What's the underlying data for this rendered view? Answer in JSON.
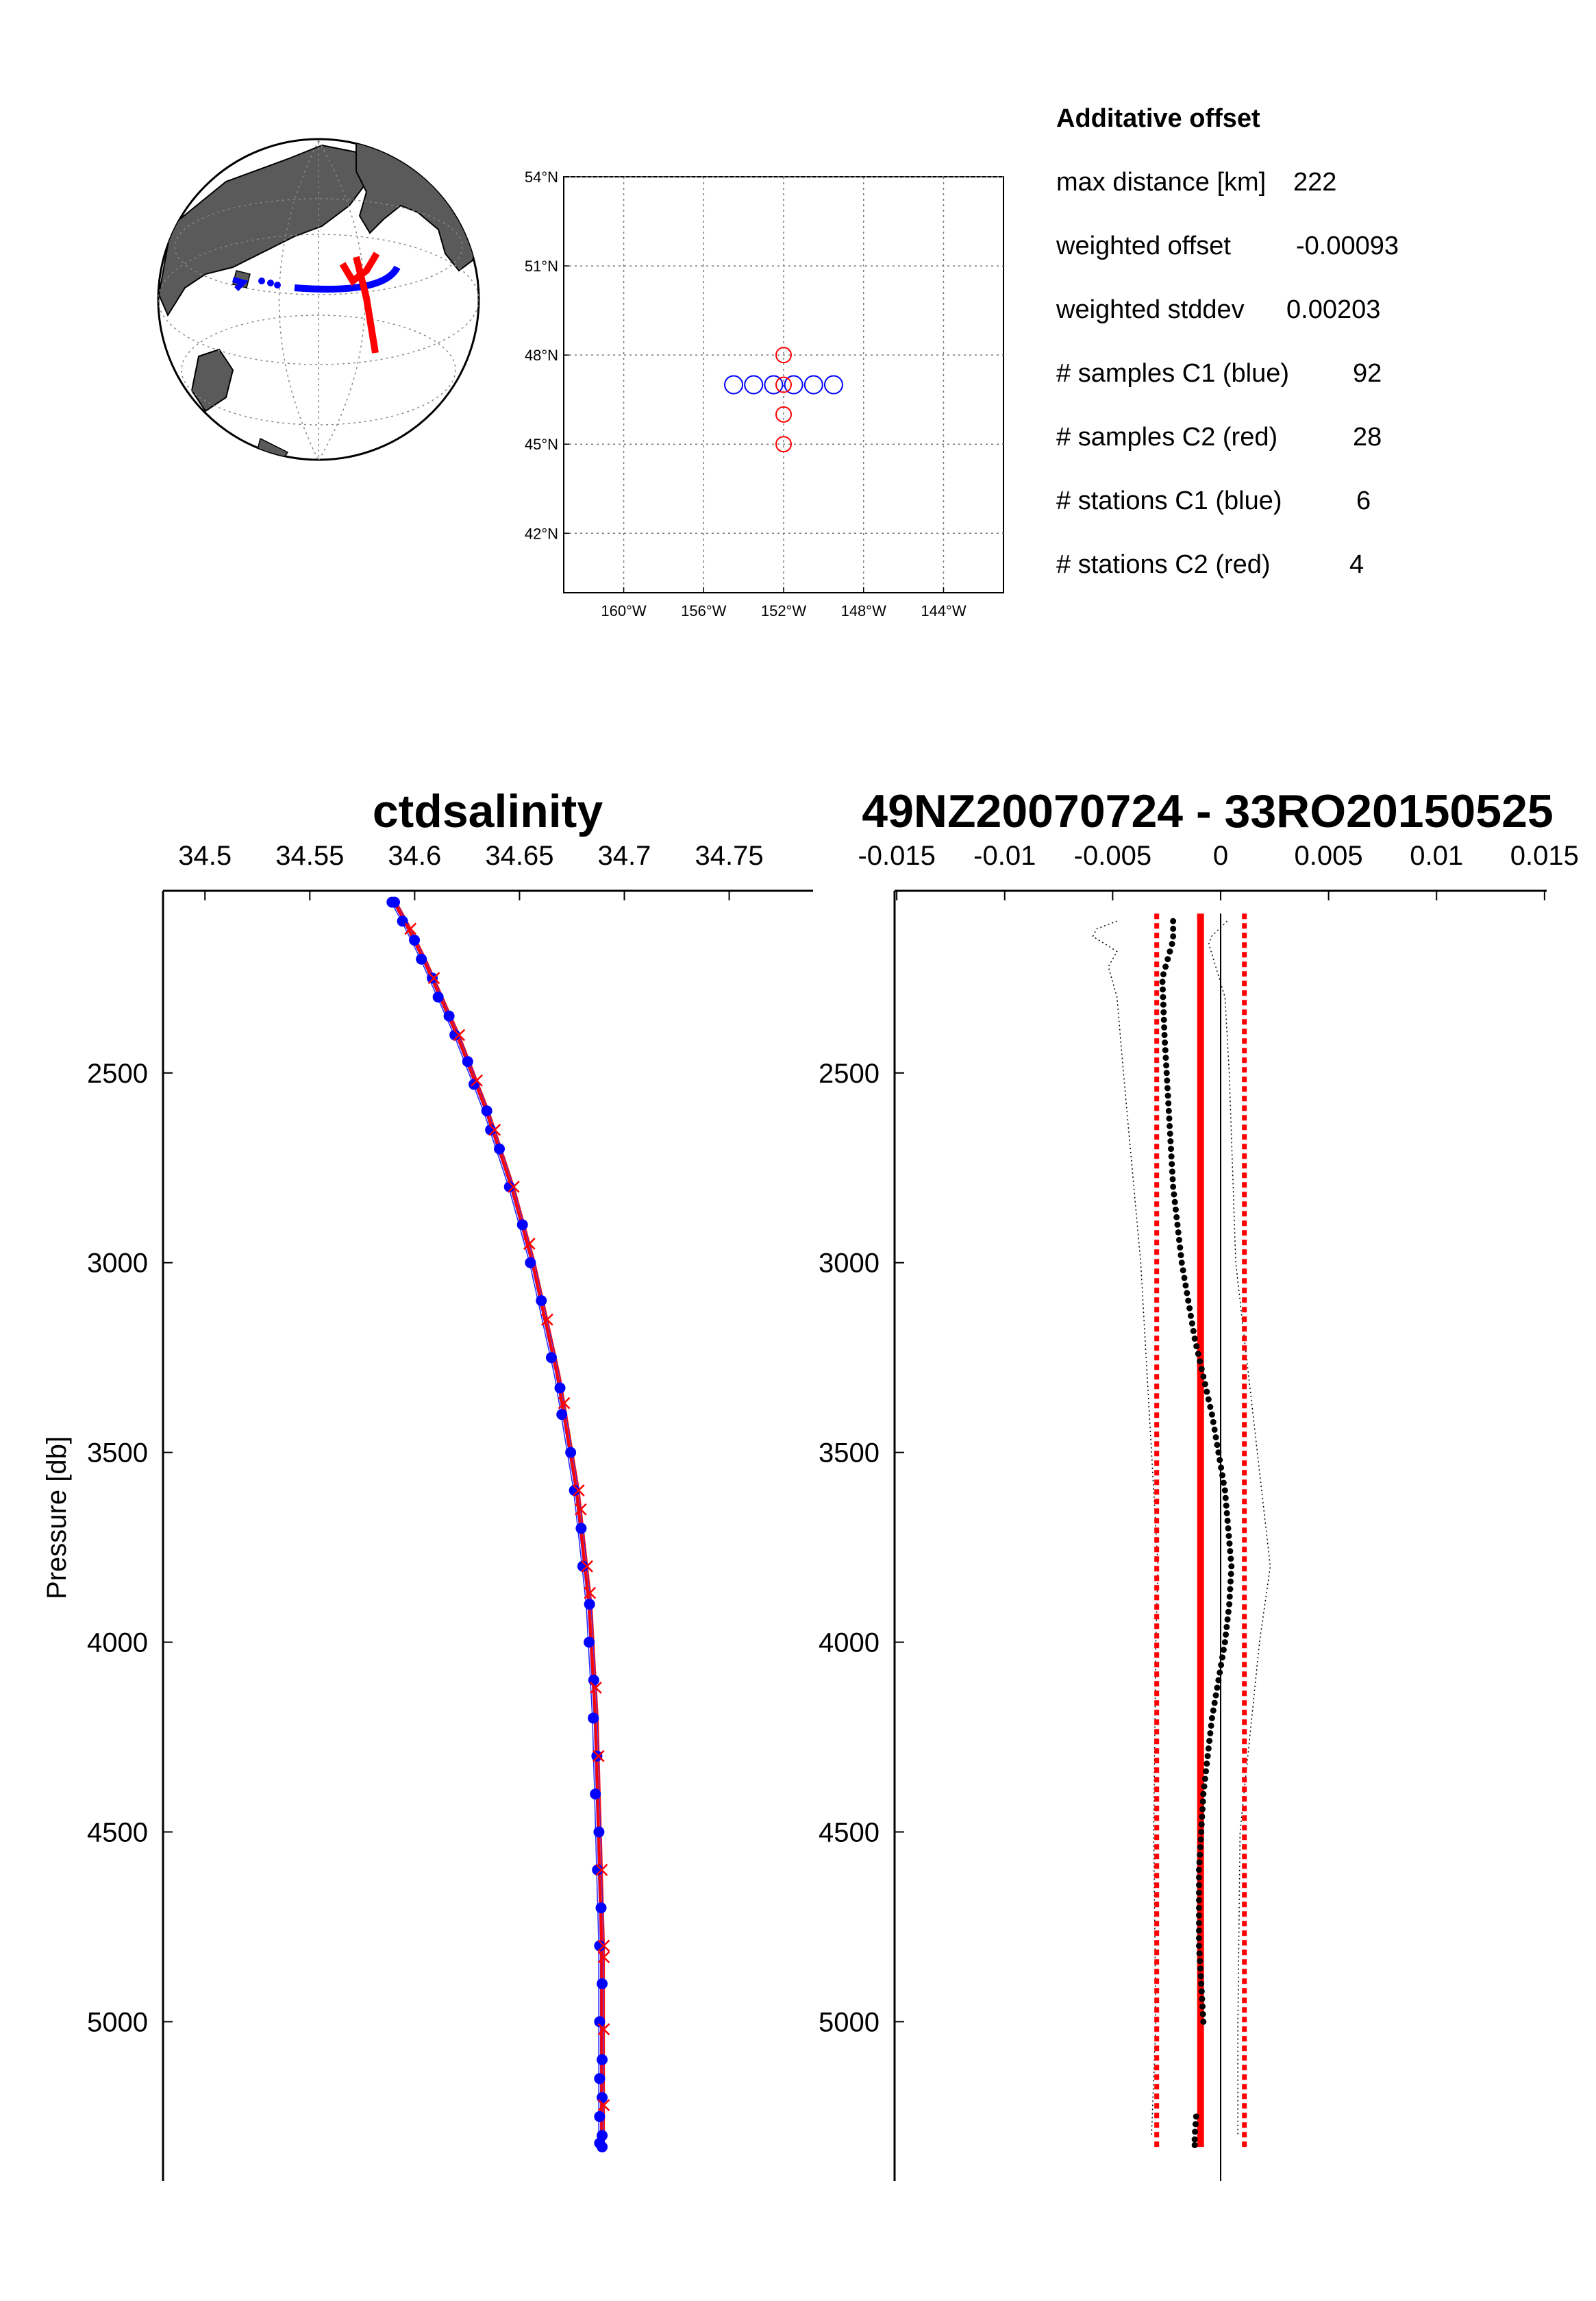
{
  "info": {
    "title": "Additative offset",
    "lines": [
      {
        "label": "max distance [km]",
        "value": "222"
      },
      {
        "label": "weighted offset",
        "value": "-0.00093"
      },
      {
        "label": "weighted stddev",
        "value": "0.00203"
      },
      {
        "label": "# samples C1 (blue)",
        "value": "92"
      },
      {
        "label": "# samples C2 (red)",
        "value": "28"
      },
      {
        "label": "# stations C1 (blue)",
        "value": "6"
      },
      {
        "label": "# stations C2 (red)",
        "value": "4"
      }
    ]
  },
  "colors": {
    "c1": "#0000ff",
    "c2": "#ff0000",
    "globe_land": "#5a5a5a",
    "diff": "#000000"
  },
  "chart_data": [
    {
      "type": "scatter",
      "name": "station-map",
      "xticks": [
        "160°W",
        "156°W",
        "152°W",
        "148°W",
        "144°W"
      ],
      "xtick_values": [
        -160,
        -156,
        -152,
        -148,
        -144
      ],
      "yticks": [
        "54°N",
        "51°N",
        "48°N",
        "45°N",
        "42°N"
      ],
      "ytick_values": [
        54,
        51,
        48,
        45,
        42
      ],
      "xlim": [
        -163,
        -141
      ],
      "ylim": [
        40,
        54
      ],
      "grid": true,
      "series": [
        {
          "key": "c1",
          "x": [
            -154.5,
            -153.5,
            -152.5,
            -151.5,
            -150.5,
            -149.5
          ],
          "y": [
            47,
            47,
            47,
            47,
            47,
            47
          ]
        },
        {
          "key": "c2",
          "x": [
            -152,
            -152,
            -152,
            -152
          ],
          "y": [
            48,
            47,
            46,
            45
          ]
        }
      ]
    },
    {
      "type": "line",
      "name": "salinity-profile",
      "title": "ctdsalinity",
      "ylabel": "Pressure  [db]",
      "xticks": [
        "34.5",
        "34.55",
        "34.6",
        "34.65",
        "34.7",
        "34.75"
      ],
      "xtick_values": [
        34.5,
        34.55,
        34.6,
        34.65,
        34.7,
        34.75
      ],
      "yticks": [
        "2500",
        "3000",
        "3500",
        "4000",
        "4500",
        "5000"
      ],
      "ytick_values": [
        2500,
        3000,
        3500,
        4000,
        4500,
        5000
      ],
      "xlim": [
        34.48,
        34.79
      ],
      "ylim": [
        2020,
        5420
      ],
      "y_reversed": true,
      "profile": {
        "p": [
          2050,
          2100,
          2200,
          2300,
          2400,
          2500,
          2600,
          2700,
          2800,
          2900,
          3000,
          3100,
          3200,
          3300,
          3400,
          3500,
          3600,
          3700,
          3800,
          3900,
          4000,
          4200,
          4400,
          4600,
          4800,
          5000,
          5200,
          5330
        ],
        "s": [
          34.59,
          34.595,
          34.604,
          34.612,
          34.62,
          34.627,
          34.634,
          34.64,
          34.646,
          34.651,
          34.656,
          34.66,
          34.664,
          34.668,
          34.671,
          34.674,
          34.677,
          34.679,
          34.681,
          34.683,
          34.684,
          34.686,
          34.687,
          34.688,
          34.689,
          34.689,
          34.689,
          34.689
        ]
      },
      "c1_pressures": [
        2050,
        2050,
        2100,
        2150,
        2200,
        2250,
        2300,
        2350,
        2400,
        2470,
        2530,
        2600,
        2650,
        2700,
        2800,
        2900,
        3000,
        3100,
        3250,
        3330,
        3400,
        3500,
        3600,
        3700,
        3800,
        3900,
        4000,
        4100,
        4200,
        4300,
        4400,
        4500,
        4600,
        4700,
        4800,
        4900,
        5000,
        5100,
        5150,
        5200,
        5250,
        5300,
        5320,
        5330
      ],
      "c2_pressures": [
        2120,
        2250,
        2400,
        2520,
        2650,
        2800,
        2950,
        3150,
        3370,
        3600,
        3650,
        3800,
        3870,
        4120,
        4300,
        4600,
        4800,
        4830,
        5020,
        5220
      ]
    },
    {
      "type": "scatter",
      "name": "salinity-difference",
      "title": "49NZ20070724 - 33RO20150525",
      "xticks": [
        "-0.015",
        "-0.01",
        "-0.005",
        "0",
        "0.005",
        "0.01",
        "0.015"
      ],
      "xtick_values": [
        -0.015,
        -0.01,
        -0.005,
        0,
        0.005,
        0.01,
        0.015
      ],
      "yticks": [
        "2500",
        "3000",
        "3500",
        "4000",
        "4500",
        "5000"
      ],
      "ytick_values": [
        2500,
        3000,
        3500,
        4000,
        4500,
        5000
      ],
      "xlim": [
        -0.0151,
        0.0151
      ],
      "ylim": [
        2020,
        5420
      ],
      "y_reversed": true,
      "weighted_offset": -0.00093,
      "stddev_band": [
        -0.00296,
        0.0011
      ],
      "diff": {
        "p": [
          2100,
          2150,
          2250,
          2400,
          2600,
          2800,
          3000,
          3200,
          3400,
          3600,
          3800,
          3900,
          4000,
          4200,
          4400,
          4600,
          4800,
          5000,
          5300
        ],
        "d": [
          -0.0022,
          -0.0022,
          -0.0027,
          -0.0026,
          -0.0024,
          -0.0022,
          -0.0018,
          -0.0012,
          -0.0004,
          0.0002,
          0.0005,
          0.0004,
          0.0002,
          -0.0004,
          -0.0008,
          -0.001,
          -0.001,
          -0.0008,
          -0.0012
        ]
      },
      "envelope_left": {
        "p": [
          2100,
          2130,
          2180,
          2220,
          2300,
          2500,
          3000,
          3500,
          3800,
          4000,
          4500,
          5000,
          5300
        ],
        "d": [
          -0.0048,
          -0.0062,
          -0.0048,
          -0.0052,
          -0.0048,
          -0.0045,
          -0.0037,
          -0.0032,
          -0.0029,
          -0.003,
          -0.0031,
          -0.003,
          -0.0032
        ]
      },
      "envelope_right": {
        "p": [
          2100,
          2150,
          2300,
          2500,
          3000,
          3500,
          3800,
          4000,
          4500,
          5000,
          5300
        ],
        "d": [
          0.0003,
          -0.0006,
          0.0002,
          0.0004,
          0.0007,
          0.0017,
          0.0023,
          0.0018,
          0.0009,
          0.0008,
          0.0008
        ]
      }
    }
  ]
}
